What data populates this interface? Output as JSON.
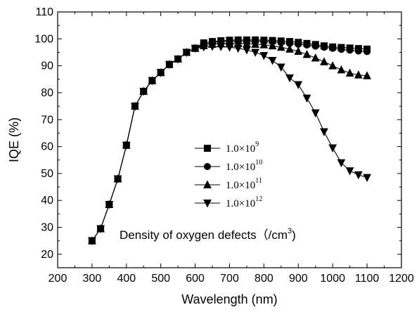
{
  "chart_data": {
    "type": "line",
    "xlabel": "Wavelength (nm)",
    "ylabel": "IQE (%)",
    "xlim": [
      200,
      1200
    ],
    "ylim": [
      15,
      110
    ],
    "x_ticks": [
      200,
      300,
      400,
      500,
      600,
      700,
      800,
      900,
      1000,
      1100,
      1200
    ],
    "y_ticks": [
      20,
      30,
      40,
      50,
      60,
      70,
      80,
      90,
      100,
      110
    ],
    "grid": false,
    "legend_position": "center-right",
    "annotation": {
      "text": "Density of oxygen defects（/cm",
      "sup": "3",
      "close": ")"
    },
    "x": [
      300,
      325,
      350,
      375,
      400,
      425,
      450,
      475,
      500,
      525,
      550,
      575,
      600,
      625,
      650,
      675,
      700,
      725,
      750,
      775,
      800,
      825,
      850,
      875,
      900,
      925,
      950,
      975,
      1000,
      1025,
      1050,
      1075,
      1100
    ],
    "series": [
      {
        "name": "1.0×10",
        "name_sup": "9",
        "marker": "square",
        "values": [
          25,
          29.5,
          38.5,
          48,
          60.5,
          75,
          80.5,
          84.5,
          87.5,
          90.5,
          92.5,
          95,
          96.5,
          98.5,
          99,
          99.3,
          99.5,
          99.6,
          99.6,
          99.6,
          99.5,
          99.4,
          99.2,
          99,
          98.7,
          98.3,
          97.9,
          97.4,
          97,
          96.8,
          96.6,
          96.4,
          96.2
        ]
      },
      {
        "name": "1.0×10",
        "name_sup": "10",
        "marker": "circle",
        "values": [
          25,
          29.5,
          38.5,
          48,
          60.5,
          75,
          80.5,
          84.5,
          87.5,
          90.5,
          92.5,
          95,
          96.5,
          98,
          98.7,
          99,
          99.1,
          99.2,
          99.2,
          99.1,
          99,
          98.9,
          98.6,
          98.3,
          98,
          97.7,
          97.3,
          96.9,
          96.5,
          96.1,
          95.8,
          95.5,
          95.3
        ]
      },
      {
        "name": "1.0×10",
        "name_sup": "11",
        "marker": "triangle-up",
        "values": [
          25,
          29.5,
          38.5,
          48,
          60.5,
          75,
          80.5,
          84.5,
          87.5,
          90.5,
          92.5,
          95,
          96.5,
          97.5,
          98,
          98.2,
          98.3,
          98.3,
          98.2,
          98,
          97.8,
          97.4,
          96.9,
          96.2,
          95.4,
          94.2,
          92.9,
          91.5,
          90,
          88.5,
          87.3,
          86.6,
          86.3
        ]
      },
      {
        "name": "1.0×10",
        "name_sup": "12",
        "marker": "triangle-down",
        "values": [
          25,
          29.5,
          38.5,
          48,
          60.5,
          75,
          80.5,
          84.5,
          87.5,
          90.5,
          92.5,
          95,
          96.5,
          97,
          97.2,
          97.1,
          96.9,
          96.5,
          95.9,
          95,
          93.8,
          92,
          89.5,
          85.5,
          83,
          78,
          72.5,
          65.5,
          59.5,
          54,
          51,
          49.5,
          48.5
        ]
      }
    ]
  }
}
